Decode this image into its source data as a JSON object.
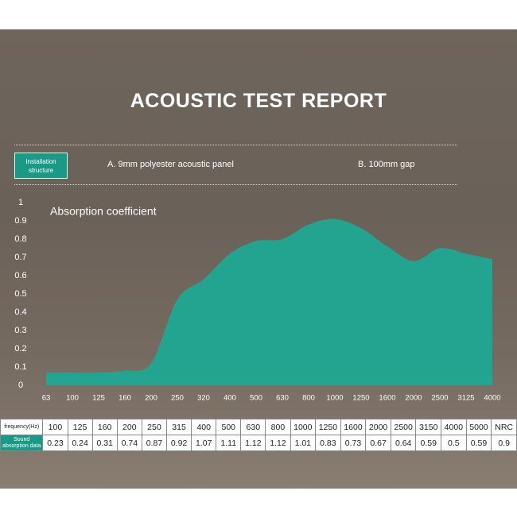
{
  "header": {
    "title": "ACOUSTIC TEST REPORT",
    "installation_label": "Installation structure",
    "item_a": "A. 9mm polyester acoustic panel",
    "item_b": "B. 100mm gap"
  },
  "chart_data": {
    "type": "area",
    "annotation": "Absorption coefficient",
    "categories": [
      "63",
      "100",
      "125",
      "160",
      "200",
      "250",
      "320",
      "400",
      "500",
      "630",
      "800",
      "1000",
      "1250",
      "1600",
      "2000",
      "2500",
      "3125",
      "4000"
    ],
    "values": [
      0.07,
      0.07,
      0.07,
      0.08,
      0.12,
      0.47,
      0.58,
      0.72,
      0.79,
      0.8,
      0.88,
      0.91,
      0.86,
      0.76,
      0.68,
      0.75,
      0.72,
      0.69
    ],
    "color": "#1fa894",
    "ylim": [
      0,
      1
    ],
    "yticks": [
      0,
      0.1,
      0.2,
      0.3,
      0.4,
      0.5,
      0.6,
      0.7,
      0.8,
      0.9,
      1
    ]
  },
  "table": {
    "rows": [
      [
        "frequency(Hz)",
        "100",
        "125",
        "160",
        "200",
        "250",
        "315",
        "400",
        "500",
        "630",
        "800",
        "1000",
        "1250",
        "1600",
        "2000",
        "2500",
        "3150",
        "4000",
        "5000",
        "NRC"
      ],
      [
        "Sound absorption data",
        "0.23",
        "0.24",
        "0.31",
        "0.74",
        "0.87",
        "0.92",
        "1.07",
        "1.11",
        "1.12",
        "1.12",
        "1.01",
        "0.83",
        "0.73",
        "0.67",
        "0.64",
        "0.59",
        "0.5",
        "0.59",
        "0.9"
      ]
    ]
  }
}
